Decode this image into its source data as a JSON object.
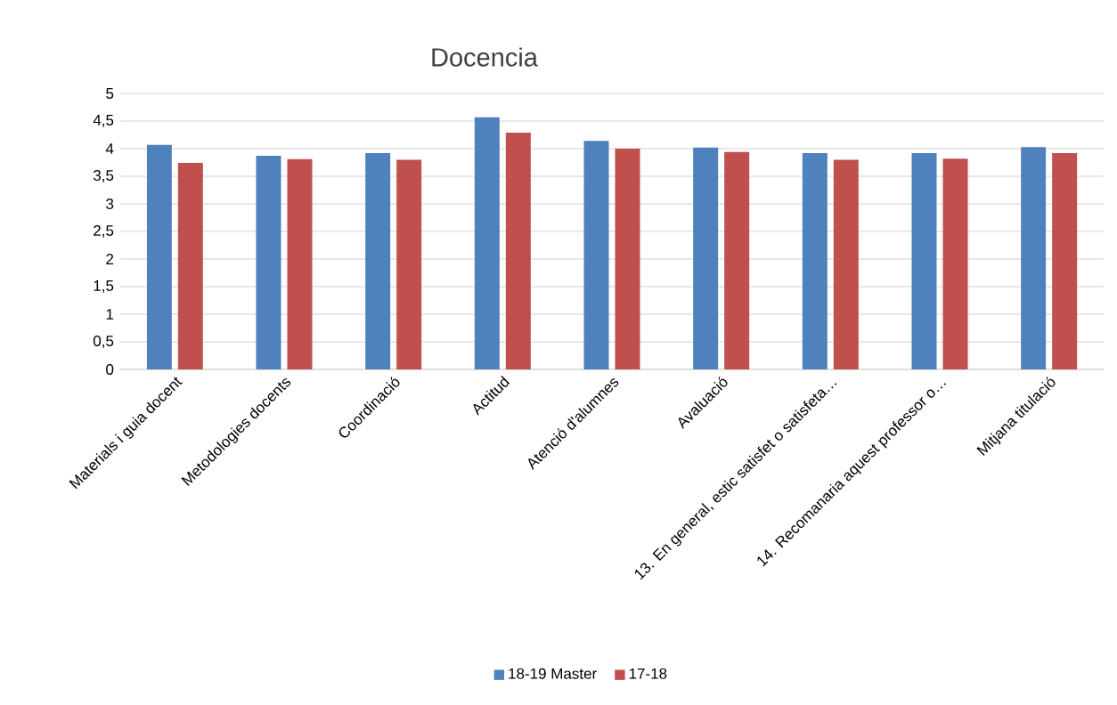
{
  "chart_data": {
    "type": "bar",
    "title": "Docencia",
    "categories": [
      "Materials i guia docent",
      "Metodologies docents",
      "Coordinació",
      "Actitud",
      "Atenció d'alumnes",
      "Avaluació",
      "13. En general, estic satisfet o satisfeta…",
      "14. Recomanaria aquest professor o…",
      "Mitjana titulació"
    ],
    "series": [
      {
        "name": "18-19 Master",
        "color": "#4f81bd",
        "values": [
          4.07,
          3.87,
          3.92,
          4.57,
          4.14,
          4.02,
          3.92,
          3.92,
          4.03
        ]
      },
      {
        "name": "17-18",
        "color": "#c0504d",
        "values": [
          3.74,
          3.81,
          3.8,
          4.29,
          4.0,
          3.94,
          3.8,
          3.82,
          3.92
        ]
      }
    ],
    "ylim": [
      0,
      5
    ],
    "yticks": [
      0,
      {
        "value": 0.5,
        "label": "0,5"
      },
      1,
      {
        "value": 1.5,
        "label": "1,5"
      },
      2,
      {
        "value": 2.5,
        "label": "2,5"
      },
      3,
      {
        "value": 3.5,
        "label": "3,5"
      },
      4,
      {
        "value": 4.5,
        "label": "4,5"
      },
      5
    ],
    "grid": "y",
    "legend": "bottom"
  }
}
